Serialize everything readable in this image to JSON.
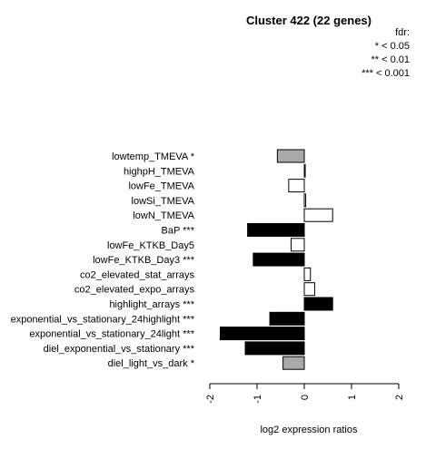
{
  "chart_data": {
    "type": "bar",
    "orientation": "horizontal",
    "title": "Cluster 422 (22 genes)",
    "xlabel": "log2 expression ratios",
    "ylabel": "",
    "xlim": [
      -2,
      2
    ],
    "xticks": [
      "-2",
      "-1",
      "0",
      "1",
      "2"
    ],
    "grid": false,
    "legend": {
      "position": "top-right",
      "title": "fdr:",
      "entries": [
        "* < 0.05",
        "** < 0.01",
        "*** < 0.001"
      ]
    },
    "categories": [
      "lowtemp_TMEVA *",
      "highpH_TMEVA",
      "lowFe_TMEVA",
      "lowSi_TMEVA",
      "lowN_TMEVA",
      "BaP ***",
      "lowFe_KTKB_Day5",
      "lowFe_KTKB_Day3 ***",
      "co2_elevated_stat_arrays",
      "co2_elevated_expo_arrays",
      "highlight_arrays ***",
      "exponential_vs_stationary_24highlight ***",
      "exponential_vs_stationary_24light ***",
      "diel_exponential_vs_stationary ***",
      "diel_light_vs_dark *"
    ],
    "values": [
      -0.57,
      0.02,
      -0.33,
      0.03,
      0.6,
      -1.2,
      -0.28,
      -1.08,
      0.13,
      0.22,
      0.6,
      -0.73,
      -1.78,
      -1.25,
      -0.45
    ],
    "bar_colors": [
      "#a9a9a9",
      "#ffffff",
      "#ffffff",
      "#ffffff",
      "#ffffff",
      "#000000",
      "#ffffff",
      "#000000",
      "#ffffff",
      "#ffffff",
      "#000000",
      "#000000",
      "#000000",
      "#000000",
      "#a9a9a9"
    ]
  }
}
